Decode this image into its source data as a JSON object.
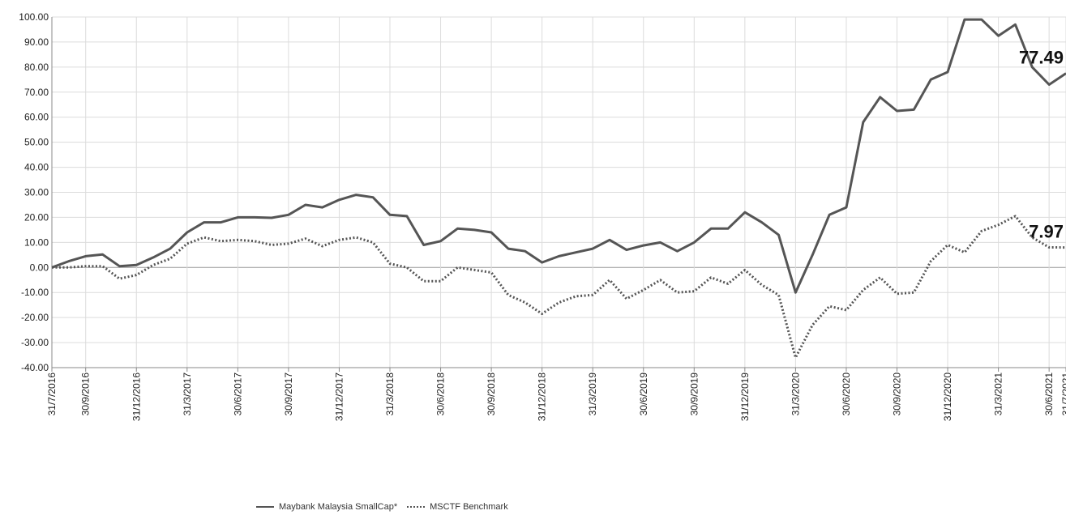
{
  "chart_data": {
    "type": "line",
    "ylim": [
      -40,
      100
    ],
    "y_ticks": [
      "100.00",
      "90.00",
      "80.00",
      "70.00",
      "60.00",
      "50.00",
      "40.00",
      "30.00",
      "20.00",
      "10.00",
      "0.00",
      "-10.00",
      "-20.00",
      "-30.00",
      "-40.00"
    ],
    "x_ticks": [
      "31/7/2016",
      "30/9/2016",
      "31/12/2016",
      "31/3/2017",
      "30/6/2017",
      "30/9/2017",
      "31/12/2017",
      "31/3/2018",
      "30/6/2018",
      "30/9/2018",
      "31/12/2018",
      "31/3/2019",
      "30/6/2019",
      "30/9/2019",
      "31/12/2019",
      "31/3/2020",
      "30/6/2020",
      "30/9/2020",
      "31/12/2020",
      "31/3/2021",
      "30/6/2021",
      "31/7/2021"
    ],
    "grid": true,
    "legend_position": "bottom",
    "x": [
      "2016-07-31",
      "2016-08-31",
      "2016-09-30",
      "2016-10-31",
      "2016-11-30",
      "2016-12-31",
      "2017-01-31",
      "2017-02-28",
      "2017-03-31",
      "2017-04-30",
      "2017-05-31",
      "2017-06-30",
      "2017-07-31",
      "2017-08-31",
      "2017-09-30",
      "2017-10-31",
      "2017-11-30",
      "2017-12-31",
      "2018-01-31",
      "2018-02-28",
      "2018-03-31",
      "2018-04-30",
      "2018-05-31",
      "2018-06-30",
      "2018-07-31",
      "2018-08-31",
      "2018-09-30",
      "2018-10-31",
      "2018-11-30",
      "2018-12-31",
      "2019-01-31",
      "2019-02-28",
      "2019-03-31",
      "2019-04-30",
      "2019-05-31",
      "2019-06-30",
      "2019-07-31",
      "2019-08-31",
      "2019-09-30",
      "2019-10-31",
      "2019-11-30",
      "2019-12-31",
      "2020-01-31",
      "2020-02-29",
      "2020-03-31",
      "2020-04-30",
      "2020-05-31",
      "2020-06-30",
      "2020-07-31",
      "2020-08-31",
      "2020-09-30",
      "2020-10-31",
      "2020-11-30",
      "2020-12-31",
      "2021-01-31",
      "2021-02-28",
      "2021-03-31",
      "2021-04-30",
      "2021-05-31",
      "2021-06-30",
      "2021-07-31"
    ],
    "series": [
      {
        "name": "Maybank Malaysia SmallCap*",
        "style": "solid",
        "color": "#555555",
        "end_label": "77.49",
        "values": [
          0,
          2.5,
          4.5,
          5.2,
          0.5,
          1,
          4,
          7.5,
          14,
          18,
          18,
          20,
          20,
          19.8,
          21,
          25,
          24,
          27,
          29,
          28,
          21,
          20.5,
          9,
          10.5,
          15.5,
          15,
          14,
          7.5,
          6.5,
          2,
          4.5,
          6,
          7.5,
          11,
          7,
          8.8,
          10,
          6.5,
          10,
          15.5,
          15.5,
          22,
          18,
          13,
          -10,
          5,
          21,
          24,
          58,
          68,
          62.5,
          63,
          75,
          78,
          99,
          99,
          92.5,
          97,
          80,
          73,
          77.49
        ]
      },
      {
        "name": "MSCTF Benchmark",
        "style": "dotted",
        "color": "#555555",
        "end_label": "7.97",
        "values": [
          0,
          0,
          0.5,
          0.5,
          -4.5,
          -3,
          1,
          3.5,
          9.5,
          12,
          10.5,
          11,
          10.5,
          9,
          9.5,
          11.5,
          8.5,
          11,
          12,
          10,
          1.5,
          0,
          -5.5,
          -5.5,
          0,
          -1,
          -2,
          -11,
          -14,
          -18.5,
          -14,
          -11.5,
          -11,
          -5,
          -12.5,
          -9,
          -5,
          -10,
          -9.5,
          -4,
          -6.5,
          -1,
          -7,
          -11,
          -36,
          -23,
          -15.5,
          -17,
          -9,
          -4,
          -10.5,
          -10,
          2.5,
          9,
          6,
          14.5,
          17,
          20.5,
          12,
          8,
          7.97
        ]
      }
    ]
  }
}
